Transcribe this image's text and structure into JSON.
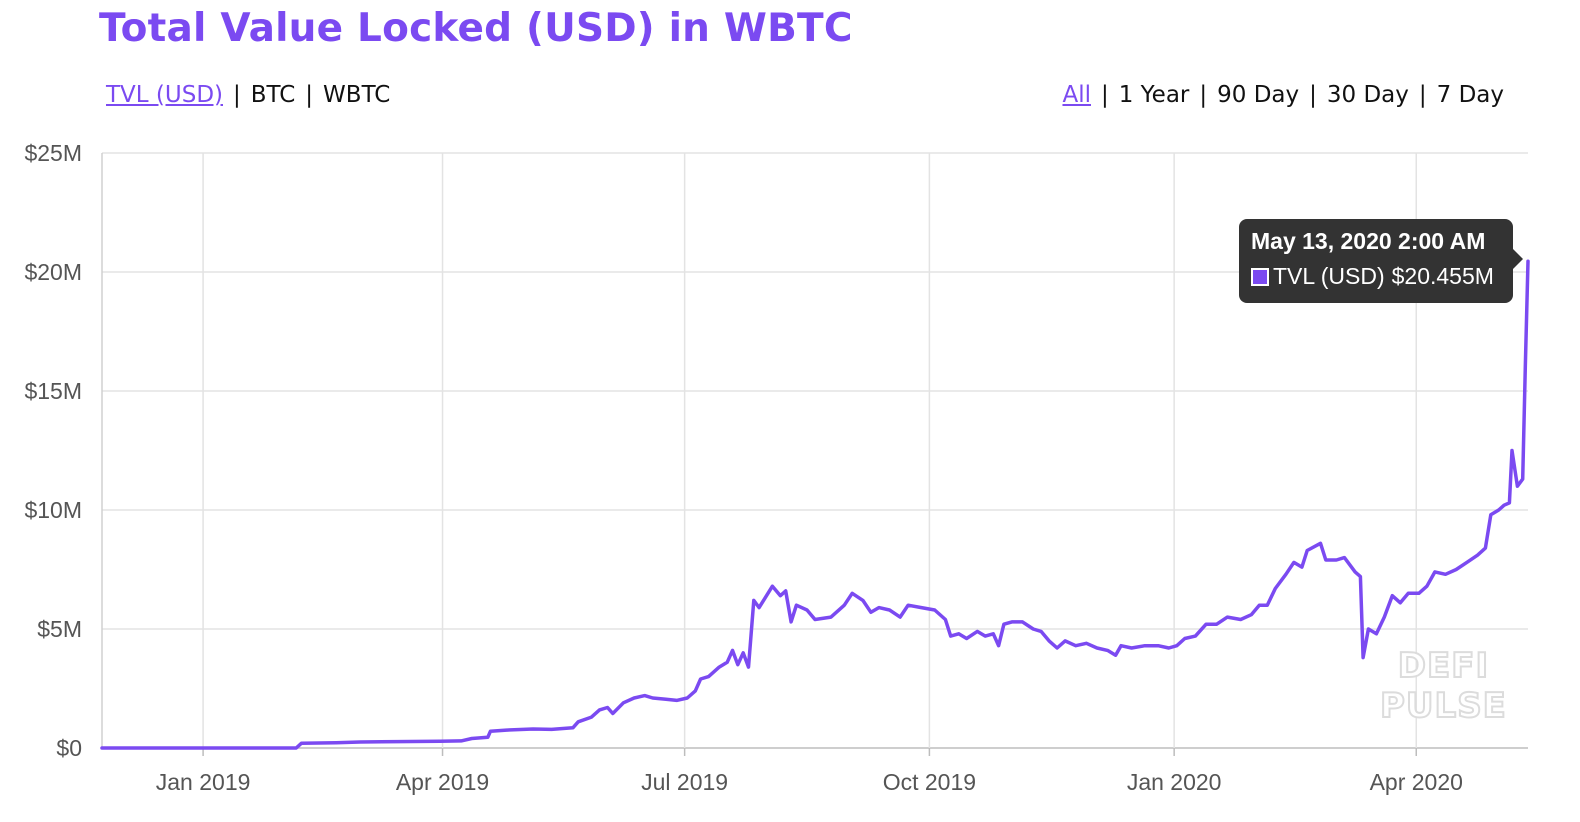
{
  "header": {
    "title": "Total Value Locked (USD) in WBTC"
  },
  "metric_toggles": [
    {
      "label": "TVL (USD)",
      "active": true
    },
    {
      "label": "BTC",
      "active": false
    },
    {
      "label": "WBTC",
      "active": false
    }
  ],
  "range_toggles": [
    {
      "label": "All",
      "active": true
    },
    {
      "label": "1 Year",
      "active": false
    },
    {
      "label": "90 Day",
      "active": false
    },
    {
      "label": "30 Day",
      "active": false
    },
    {
      "label": "7 Day",
      "active": false
    }
  ],
  "tooltip": {
    "date": "May 13, 2020 2:00 AM",
    "series_label": "TVL (USD)",
    "value_label": "$20.455M"
  },
  "watermark": {
    "line1": "DEFI",
    "line2": "PULSE"
  },
  "colors": {
    "accent": "#7b4af1",
    "line": "#7b4af1",
    "tooltip_bg": "#333333",
    "grid": "#e3e3e3"
  },
  "chart_data": {
    "type": "line",
    "title": "Total Value Locked (USD) in WBTC",
    "xlabel": "",
    "ylabel": "",
    "x_range": [
      "2018-11-24",
      "2020-05-13"
    ],
    "ylim": [
      0,
      25
    ],
    "y_unit": "M USD",
    "y_ticks": [
      0,
      5,
      10,
      15,
      20,
      25
    ],
    "y_tick_labels": [
      "$0",
      "$5M",
      "$10M",
      "$15M",
      "$20M",
      "$25M"
    ],
    "x_ticks": [
      "2019-01-01",
      "2019-04-01",
      "2019-07-01",
      "2019-10-01",
      "2020-01-01",
      "2020-04-01"
    ],
    "x_tick_labels": [
      "Jan 2019",
      "Apr 2019",
      "Jul 2019",
      "Oct 2019",
      "Jan 2020",
      "Apr 2020"
    ],
    "grid": true,
    "legend": "none",
    "series": [
      {
        "name": "TVL (USD)",
        "points": [
          [
            "2018-11-24",
            0
          ],
          [
            "2019-01-01",
            0
          ],
          [
            "2019-02-05",
            0
          ],
          [
            "2019-02-07",
            0.2
          ],
          [
            "2019-02-20",
            0.22
          ],
          [
            "2019-03-01",
            0.25
          ],
          [
            "2019-03-15",
            0.27
          ],
          [
            "2019-03-31",
            0.28
          ],
          [
            "2019-04-08",
            0.3
          ],
          [
            "2019-04-12",
            0.4
          ],
          [
            "2019-04-18",
            0.45
          ],
          [
            "2019-04-19",
            0.7
          ],
          [
            "2019-04-25",
            0.75
          ],
          [
            "2019-05-05",
            0.8
          ],
          [
            "2019-05-12",
            0.78
          ],
          [
            "2019-05-20",
            0.85
          ],
          [
            "2019-05-22",
            1.1
          ],
          [
            "2019-05-27",
            1.3
          ],
          [
            "2019-05-30",
            1.6
          ],
          [
            "2019-06-02",
            1.7
          ],
          [
            "2019-06-04",
            1.45
          ],
          [
            "2019-06-08",
            1.9
          ],
          [
            "2019-06-12",
            2.1
          ],
          [
            "2019-06-16",
            2.2
          ],
          [
            "2019-06-19",
            2.1
          ],
          [
            "2019-06-24",
            2.05
          ],
          [
            "2019-06-28",
            2.0
          ],
          [
            "2019-07-02",
            2.1
          ],
          [
            "2019-07-05",
            2.4
          ],
          [
            "2019-07-07",
            2.9
          ],
          [
            "2019-07-10",
            3.0
          ],
          [
            "2019-07-14",
            3.4
          ],
          [
            "2019-07-17",
            3.6
          ],
          [
            "2019-07-19",
            4.1
          ],
          [
            "2019-07-21",
            3.5
          ],
          [
            "2019-07-23",
            4.0
          ],
          [
            "2019-07-25",
            3.4
          ],
          [
            "2019-07-27",
            6.2
          ],
          [
            "2019-07-29",
            5.9
          ],
          [
            "2019-08-03",
            6.8
          ],
          [
            "2019-08-06",
            6.4
          ],
          [
            "2019-08-08",
            6.6
          ],
          [
            "2019-08-10",
            5.3
          ],
          [
            "2019-08-12",
            6.0
          ],
          [
            "2019-08-16",
            5.8
          ],
          [
            "2019-08-19",
            5.4
          ],
          [
            "2019-08-25",
            5.5
          ],
          [
            "2019-08-30",
            6.0
          ],
          [
            "2019-09-02",
            6.5
          ],
          [
            "2019-09-06",
            6.2
          ],
          [
            "2019-09-09",
            5.7
          ],
          [
            "2019-09-12",
            5.9
          ],
          [
            "2019-09-16",
            5.8
          ],
          [
            "2019-09-20",
            5.5
          ],
          [
            "2019-09-23",
            6.0
          ],
          [
            "2019-09-28",
            5.9
          ],
          [
            "2019-10-03",
            5.8
          ],
          [
            "2019-10-07",
            5.4
          ],
          [
            "2019-10-09",
            4.7
          ],
          [
            "2019-10-12",
            4.8
          ],
          [
            "2019-10-15",
            4.6
          ],
          [
            "2019-10-19",
            4.9
          ],
          [
            "2019-10-22",
            4.7
          ],
          [
            "2019-10-25",
            4.8
          ],
          [
            "2019-10-27",
            4.3
          ],
          [
            "2019-10-29",
            5.2
          ],
          [
            "2019-11-01",
            5.3
          ],
          [
            "2019-11-05",
            5.3
          ],
          [
            "2019-11-09",
            5.0
          ],
          [
            "2019-11-12",
            4.9
          ],
          [
            "2019-11-15",
            4.5
          ],
          [
            "2019-11-18",
            4.2
          ],
          [
            "2019-11-21",
            4.5
          ],
          [
            "2019-11-25",
            4.3
          ],
          [
            "2019-11-29",
            4.4
          ],
          [
            "2019-12-03",
            4.2
          ],
          [
            "2019-12-07",
            4.1
          ],
          [
            "2019-12-10",
            3.9
          ],
          [
            "2019-12-12",
            4.3
          ],
          [
            "2019-12-16",
            4.2
          ],
          [
            "2019-12-21",
            4.3
          ],
          [
            "2019-12-26",
            4.3
          ],
          [
            "2019-12-30",
            4.2
          ],
          [
            "2020-01-02",
            4.3
          ],
          [
            "2020-01-05",
            4.6
          ],
          [
            "2020-01-09",
            4.7
          ],
          [
            "2020-01-13",
            5.2
          ],
          [
            "2020-01-17",
            5.2
          ],
          [
            "2020-01-21",
            5.5
          ],
          [
            "2020-01-26",
            5.4
          ],
          [
            "2020-01-30",
            5.6
          ],
          [
            "2020-02-02",
            6.0
          ],
          [
            "2020-02-05",
            6.0
          ],
          [
            "2020-02-08",
            6.7
          ],
          [
            "2020-02-12",
            7.3
          ],
          [
            "2020-02-15",
            7.8
          ],
          [
            "2020-02-18",
            7.6
          ],
          [
            "2020-02-20",
            8.3
          ],
          [
            "2020-02-25",
            8.6
          ],
          [
            "2020-02-27",
            7.9
          ],
          [
            "2020-03-02",
            7.9
          ],
          [
            "2020-03-05",
            8.0
          ],
          [
            "2020-03-09",
            7.4
          ],
          [
            "2020-03-11",
            7.2
          ],
          [
            "2020-03-12",
            3.8
          ],
          [
            "2020-03-14",
            5.0
          ],
          [
            "2020-03-17",
            4.8
          ],
          [
            "2020-03-20",
            5.5
          ],
          [
            "2020-03-23",
            6.4
          ],
          [
            "2020-03-26",
            6.1
          ],
          [
            "2020-03-29",
            6.5
          ],
          [
            "2020-04-02",
            6.5
          ],
          [
            "2020-04-05",
            6.8
          ],
          [
            "2020-04-08",
            7.4
          ],
          [
            "2020-04-12",
            7.3
          ],
          [
            "2020-04-16",
            7.5
          ],
          [
            "2020-04-20",
            7.8
          ],
          [
            "2020-04-24",
            8.1
          ],
          [
            "2020-04-27",
            8.4
          ],
          [
            "2020-04-29",
            9.8
          ],
          [
            "2020-05-02",
            10.0
          ],
          [
            "2020-05-04",
            10.2
          ],
          [
            "2020-05-06",
            10.3
          ],
          [
            "2020-05-07",
            12.5
          ],
          [
            "2020-05-09",
            11.0
          ],
          [
            "2020-05-11",
            11.3
          ],
          [
            "2020-05-12",
            16.0
          ],
          [
            "2020-05-13",
            20.455
          ]
        ]
      }
    ]
  }
}
